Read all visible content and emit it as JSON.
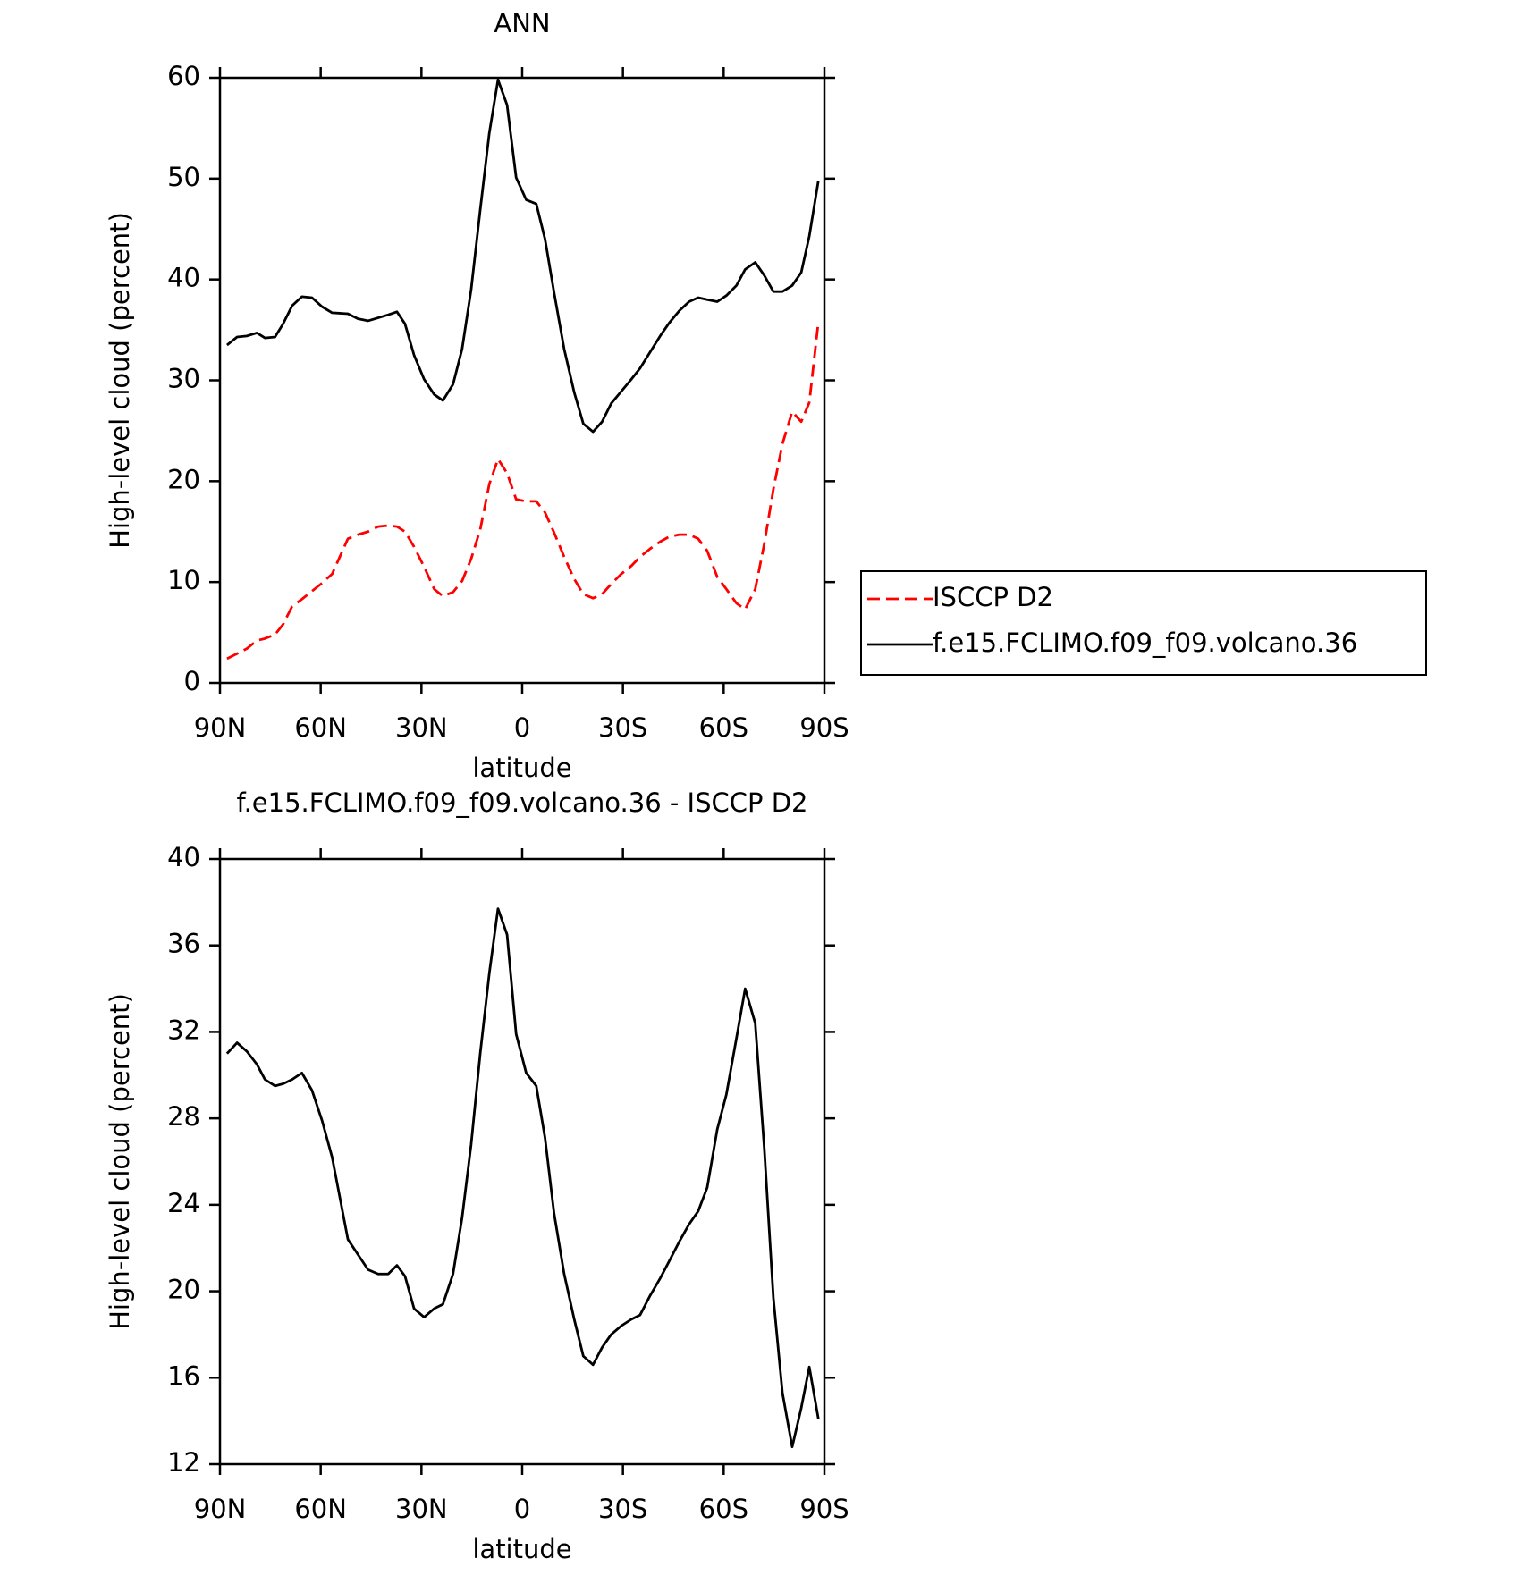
{
  "chart_data": [
    {
      "type": "line",
      "title": "ANN",
      "xlabel": "latitude",
      "ylabel": "High-level cloud (percent)",
      "x": [
        87.9,
        84.9,
        82.0,
        79.0,
        76.6,
        73.6,
        71.2,
        68.5,
        65.6,
        62.6,
        59.6,
        56.6,
        51.9,
        48.9,
        45.9,
        42.9,
        39.9,
        37.3,
        34.9,
        32.2,
        29.2,
        26.2,
        23.6,
        20.6,
        17.9,
        15.2,
        12.5,
        9.8,
        7.2,
        4.5,
        1.8,
        -1.2,
        -4.2,
        -6.8,
        -9.5,
        -12.5,
        -15.5,
        -18.2,
        -21.1,
        -23.8,
        -26.5,
        -29.5,
        -32.5,
        -35.1,
        -38.1,
        -41.1,
        -43.8,
        -46.8,
        -49.7,
        -52.4,
        -55.1,
        -58.1,
        -60.8,
        -63.8,
        -66.4,
        -69.4,
        -72.1,
        -74.8,
        -77.5,
        -80.4,
        -83.1,
        -85.5,
        -88.2
      ],
      "series": [
        {
          "name": "ISCCP D2",
          "color": "#ff0000",
          "line_style": "dashed",
          "values": [
            2.4,
            2.9,
            3.4,
            4.2,
            4.4,
            4.8,
            5.8,
            7.6,
            8.3,
            9.1,
            9.9,
            10.8,
            14.3,
            14.7,
            15.0,
            15.5,
            15.6,
            15.5,
            15.0,
            13.5,
            11.5,
            9.3,
            8.6,
            9.0,
            10.1,
            12.3,
            15.2,
            19.7,
            22.2,
            20.8,
            18.2,
            18.0,
            18.0,
            16.9,
            14.9,
            12.5,
            10.3,
            8.8,
            8.4,
            8.8,
            9.8,
            10.8,
            11.6,
            12.5,
            13.3,
            14.0,
            14.5,
            14.7,
            14.7,
            14.3,
            13.1,
            10.5,
            9.3,
            7.9,
            7.3,
            9.3,
            13.8,
            19.2,
            23.7,
            26.9,
            25.9,
            27.8,
            35.8
          ]
        },
        {
          "name": "f.e15.FCLIMO.f09_f09.volcano.36",
          "color": "#000000",
          "line_style": "solid",
          "values": [
            33.5,
            34.3,
            34.4,
            34.7,
            34.2,
            34.3,
            35.6,
            37.4,
            38.3,
            38.2,
            37.3,
            36.7,
            36.6,
            36.1,
            35.9,
            36.2,
            36.5,
            36.8,
            35.6,
            32.5,
            30.1,
            28.6,
            28.0,
            29.6,
            33.1,
            39.0,
            46.9,
            54.5,
            59.8,
            57.3,
            50.1,
            47.9,
            47.5,
            44.0,
            38.7,
            33.1,
            28.8,
            25.7,
            24.9,
            25.9,
            27.7,
            28.9,
            30.1,
            31.2,
            32.8,
            34.4,
            35.7,
            36.9,
            37.8,
            38.2,
            38.0,
            37.8,
            38.4,
            39.4,
            41.0,
            41.7,
            40.4,
            38.8,
            38.8,
            39.4,
            40.7,
            44.3,
            49.8
          ]
        }
      ],
      "xlim": [
        90,
        -90
      ],
      "xticks": [
        {
          "value": 90,
          "label": "90N"
        },
        {
          "value": 60,
          "label": "60N"
        },
        {
          "value": 30,
          "label": "30N"
        },
        0,
        {
          "value": -30,
          "label": "30S"
        },
        {
          "value": -60,
          "label": "60S"
        },
        {
          "value": -90,
          "label": "90S"
        }
      ],
      "ylim": [
        0,
        60
      ],
      "yticks": [
        0,
        10,
        20,
        30,
        40,
        50,
        60
      ],
      "legend": "right"
    },
    {
      "type": "line",
      "title": "f.e15.FCLIMO.f09_f09.volcano.36 - ISCCP D2",
      "xlabel": "latitude",
      "ylabel": "High-level cloud (percent)",
      "x": [
        87.9,
        84.9,
        82.0,
        79.0,
        76.6,
        73.6,
        71.2,
        68.5,
        65.6,
        62.6,
        59.6,
        56.6,
        51.9,
        48.9,
        45.9,
        42.9,
        39.9,
        37.3,
        34.9,
        32.2,
        29.2,
        26.2,
        23.6,
        20.6,
        17.9,
        15.2,
        12.5,
        9.8,
        7.2,
        4.5,
        1.8,
        -1.2,
        -4.2,
        -6.8,
        -9.5,
        -12.5,
        -15.5,
        -18.2,
        -21.1,
        -23.8,
        -26.5,
        -29.5,
        -32.5,
        -35.1,
        -38.1,
        -41.1,
        -43.8,
        -46.8,
        -49.7,
        -52.4,
        -55.1,
        -58.1,
        -60.8,
        -63.8,
        -66.4,
        -69.4,
        -72.1,
        -74.8,
        -77.5,
        -80.4,
        -83.1,
        -85.5,
        -88.2
      ],
      "series": [
        {
          "color": "#000000",
          "line_style": "solid",
          "values": [
            31.0,
            31.5,
            31.1,
            30.5,
            29.8,
            29.5,
            29.6,
            29.8,
            30.1,
            29.3,
            27.9,
            26.2,
            22.4,
            21.7,
            21.0,
            20.8,
            20.8,
            21.2,
            20.7,
            19.2,
            18.8,
            19.2,
            19.4,
            20.8,
            23.4,
            26.8,
            31.0,
            34.7,
            37.7,
            36.5,
            31.9,
            30.1,
            29.5,
            27.1,
            23.6,
            20.8,
            18.7,
            17.0,
            16.6,
            17.4,
            18.0,
            18.4,
            18.7,
            18.9,
            19.8,
            20.6,
            21.4,
            22.3,
            23.1,
            23.7,
            24.8,
            27.5,
            29.1,
            31.7,
            34.0,
            32.4,
            26.6,
            19.7,
            15.3,
            12.8,
            14.6,
            16.5,
            14.1
          ]
        }
      ],
      "xlim": [
        90,
        -90
      ],
      "xticks": [
        {
          "value": 90,
          "label": "90N"
        },
        {
          "value": 60,
          "label": "60N"
        },
        {
          "value": 30,
          "label": "30N"
        },
        0,
        {
          "value": -30,
          "label": "30S"
        },
        {
          "value": -60,
          "label": "60S"
        },
        {
          "value": -90,
          "label": "90S"
        }
      ],
      "ylim": [
        12,
        40
      ],
      "yticks": [
        12,
        16,
        20,
        24,
        28,
        32,
        36,
        40
      ]
    }
  ]
}
